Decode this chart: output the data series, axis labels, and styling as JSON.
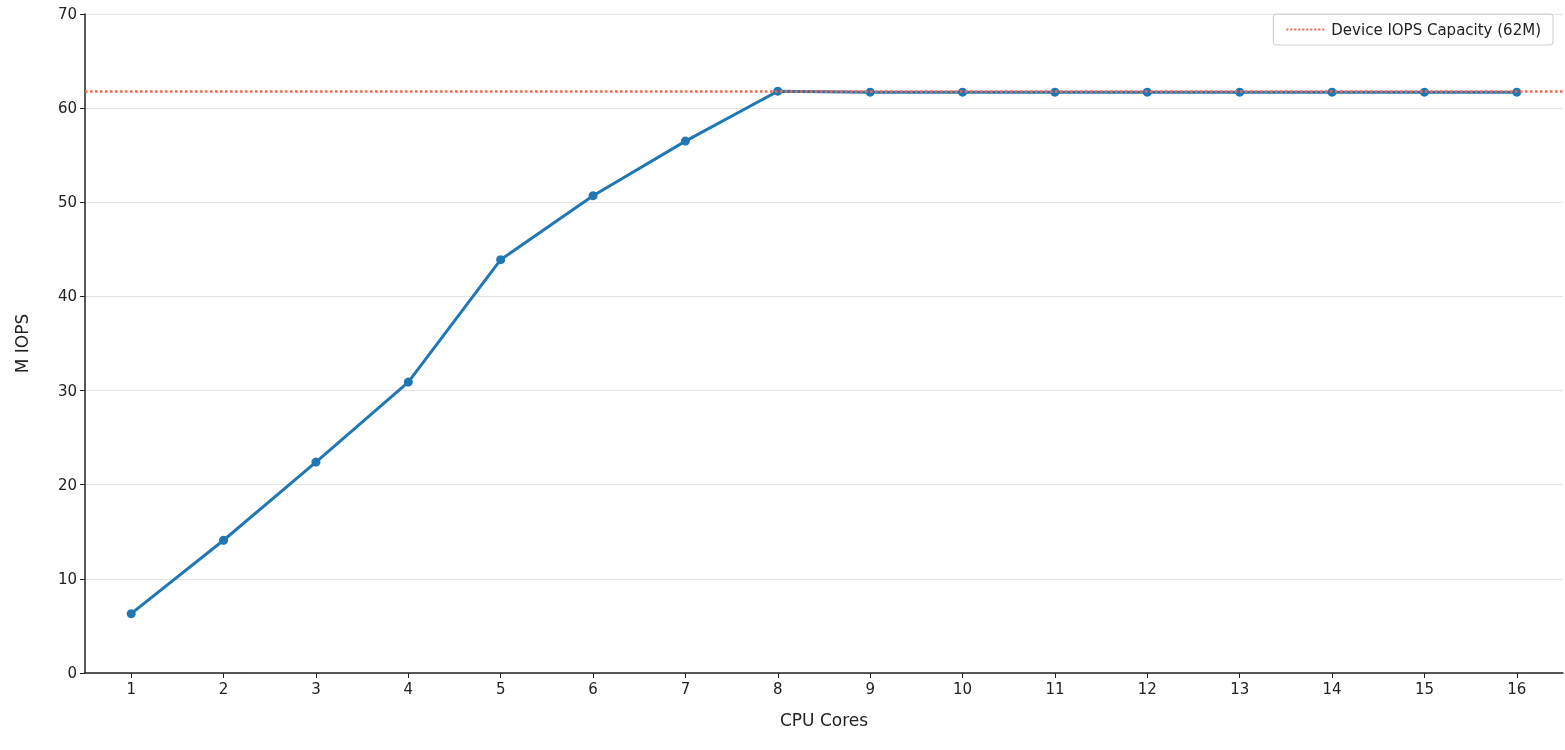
{
  "chart_data": {
    "type": "line",
    "xlabel": "CPU Cores",
    "ylabel": "M IOPS",
    "x": [
      1,
      2,
      3,
      4,
      5,
      6,
      7,
      8,
      9,
      10,
      11,
      12,
      13,
      14,
      15,
      16
    ],
    "series": [
      {
        "color": "#1f77b4",
        "values": [
          6.3,
          14.1,
          22.4,
          30.9,
          43.9,
          50.7,
          56.5,
          61.8,
          61.7,
          61.7,
          61.7,
          61.7,
          61.7,
          61.7,
          61.7,
          61.7
        ]
      }
    ],
    "xlim": [
      0.5,
      16.5
    ],
    "xticks": [
      1,
      2,
      3,
      4,
      5,
      6,
      7,
      8,
      9,
      10,
      11,
      12,
      13,
      14,
      15,
      16
    ],
    "ylim": [
      0,
      70
    ],
    "yticks": [
      0,
      10,
      20,
      30,
      40,
      50,
      60,
      70
    ],
    "ref_lines": [
      {
        "axis": "y",
        "value": 61.8,
        "label": "Device IOPS Capacity (62M)",
        "color": "#ff6347",
        "line_style": "dotted"
      }
    ],
    "grid": "y",
    "legend": "top right",
    "marker": "circle",
    "line_style": "solid"
  }
}
